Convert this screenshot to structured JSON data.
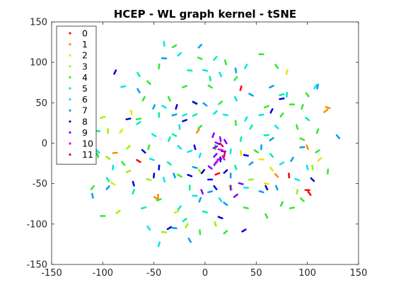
{
  "chart_data": {
    "type": "scatter",
    "title": "HCEP - WL graph kernel - tSNE",
    "xlabel": "",
    "ylabel": "",
    "xlim": [
      -150,
      150
    ],
    "ylim": [
      -150,
      150
    ],
    "xticks": [
      "-150",
      "-100",
      "-50",
      "0",
      "50",
      "100",
      "150"
    ],
    "yticks": [
      "150",
      "100",
      "50",
      "0",
      "-50",
      "-100",
      "-150"
    ],
    "xtick_values": [
      -150,
      -100,
      -50,
      0,
      50,
      100,
      150
    ],
    "ytick_values": [
      150,
      100,
      50,
      0,
      -50,
      -100,
      -150
    ],
    "grid": false,
    "legend_position": "top-left",
    "series": [
      {
        "name": "0",
        "color": "#ff0000",
        "points": [
          [
            100,
            -58
          ],
          [
            102,
            -62
          ],
          [
            35,
            68
          ],
          [
            12,
            -38
          ],
          [
            -65,
            -22
          ],
          [
            82,
            -40
          ]
        ]
      },
      {
        "name": "1",
        "color": "#ff8c00",
        "points": [
          [
            -48,
            -68
          ],
          [
            -46,
            -66
          ],
          [
            118,
            40
          ],
          [
            120,
            44
          ],
          [
            100,
            -5
          ],
          [
            -7,
            15
          ],
          [
            -88,
            -12
          ],
          [
            70,
            -40
          ]
        ]
      },
      {
        "name": "2",
        "color": "#e6e600",
        "points": [
          [
            -72,
            38
          ],
          [
            -82,
            15
          ],
          [
            55,
            -20
          ],
          [
            65,
            -32
          ],
          [
            80,
            88
          ],
          [
            -28,
            -85
          ],
          [
            -90,
            -50
          ],
          [
            35,
            -12
          ],
          [
            112,
            -20
          ],
          [
            60,
            -50
          ]
        ]
      },
      {
        "name": "3",
        "color": "#a0f000",
        "points": [
          [
            -115,
            40
          ],
          [
            -100,
            32
          ],
          [
            -95,
            -18
          ],
          [
            -95,
            15
          ],
          [
            -85,
            -85
          ],
          [
            -55,
            -45
          ],
          [
            10,
            -100
          ],
          [
            -18,
            -102
          ],
          [
            45,
            -45
          ],
          [
            25,
            -55
          ],
          [
            90,
            -60
          ],
          [
            -75,
            -35
          ],
          [
            -120,
            -15
          ],
          [
            105,
            -30
          ],
          [
            -75,
            -5
          ],
          [
            -40,
            -110
          ],
          [
            -5,
            -35
          ]
        ]
      },
      {
        "name": "4",
        "color": "#30e830",
        "points": [
          [
            -120,
            40
          ],
          [
            -112,
            -5
          ],
          [
            -105,
            -15
          ],
          [
            -110,
            -55
          ],
          [
            -100,
            -90
          ],
          [
            -80,
            -25
          ],
          [
            -55,
            -5
          ],
          [
            -45,
            -70
          ],
          [
            -25,
            -40
          ],
          [
            -5,
            -110
          ],
          [
            20,
            -110
          ],
          [
            40,
            -80
          ],
          [
            60,
            -90
          ],
          [
            75,
            -75
          ],
          [
            85,
            -80
          ],
          [
            95,
            -70
          ],
          [
            120,
            -35
          ],
          [
            110,
            -10
          ],
          [
            95,
            5
          ],
          [
            90,
            20
          ],
          [
            75,
            35
          ],
          [
            85,
            48
          ],
          [
            100,
            60
          ],
          [
            110,
            15
          ],
          [
            60,
            45
          ],
          [
            50,
            -10
          ],
          [
            30,
            25
          ],
          [
            15,
            50
          ],
          [
            -10,
            50
          ],
          [
            -35,
            55
          ],
          [
            -60,
            55
          ],
          [
            -65,
            30
          ],
          [
            -55,
            75
          ],
          [
            -45,
            95
          ],
          [
            -30,
            120
          ],
          [
            -5,
            105
          ],
          [
            20,
            100
          ],
          [
            30,
            80
          ],
          [
            55,
            110
          ],
          [
            70,
            95
          ],
          [
            95,
            45
          ],
          [
            -20,
            70
          ],
          [
            5,
            70
          ],
          [
            10,
            -5
          ],
          [
            -5,
            20
          ]
        ]
      },
      {
        "name": "5",
        "color": "#00f0a0",
        "points": [
          [
            -105,
            15
          ],
          [
            -95,
            -45
          ],
          [
            -70,
            -60
          ],
          [
            -60,
            -80
          ],
          [
            -35,
            -25
          ],
          [
            -15,
            -55
          ],
          [
            -20,
            -95
          ],
          [
            0,
            -85
          ],
          [
            30,
            -30
          ],
          [
            45,
            20
          ],
          [
            60,
            10
          ],
          [
            65,
            -15
          ],
          [
            35,
            5
          ],
          [
            -10,
            35
          ],
          [
            -30,
            10
          ],
          [
            5,
            80
          ],
          [
            10,
            105
          ],
          [
            -15,
            90
          ],
          [
            -65,
            85
          ],
          [
            -35,
            5
          ],
          [
            75,
            60
          ],
          [
            100,
            30
          ],
          [
            -45,
            35
          ]
        ]
      },
      {
        "name": "6",
        "color": "#00e6e6",
        "points": [
          [
            -105,
            -10
          ],
          [
            -90,
            -30
          ],
          [
            -65,
            25
          ],
          [
            -52,
            -20
          ],
          [
            -40,
            -45
          ],
          [
            -25,
            -80
          ],
          [
            -10,
            -65
          ],
          [
            -55,
            -105
          ],
          [
            -45,
            -125
          ],
          [
            -20,
            35
          ],
          [
            -40,
            45
          ],
          [
            -25,
            20
          ],
          [
            10,
            38
          ],
          [
            20,
            35
          ],
          [
            30,
            55
          ],
          [
            40,
            30
          ],
          [
            55,
            35
          ],
          [
            70,
            20
          ],
          [
            80,
            60
          ],
          [
            75,
            -25
          ],
          [
            90,
            -45
          ],
          [
            100,
            -30
          ],
          [
            108,
            70
          ],
          [
            40,
            -55
          ],
          [
            15,
            -70
          ],
          [
            -5,
            -15
          ],
          [
            -15,
            -10
          ],
          [
            -50,
            10
          ],
          [
            -40,
            123
          ],
          [
            -25,
            110
          ],
          [
            0,
            90
          ],
          [
            15,
            85
          ],
          [
            40,
            95
          ],
          [
            -80,
            70
          ],
          [
            -25,
            -5
          ],
          [
            25,
            -10
          ]
        ]
      },
      {
        "name": "7",
        "color": "#00a0f0",
        "points": [
          [
            -110,
            -65
          ],
          [
            -95,
            -55
          ],
          [
            -30,
            -105
          ],
          [
            -15,
            -120
          ],
          [
            -5,
            -70
          ],
          [
            5,
            -60
          ],
          [
            20,
            -75
          ],
          [
            25,
            -40
          ],
          [
            45,
            -25
          ],
          [
            55,
            -60
          ],
          [
            70,
            -55
          ],
          [
            85,
            -20
          ],
          [
            95,
            -5
          ],
          [
            130,
            8
          ],
          [
            110,
            70
          ],
          [
            65,
            70
          ],
          [
            45,
            60
          ],
          [
            30,
            90
          ],
          [
            -5,
            120
          ],
          [
            -40,
            105
          ],
          [
            -65,
            65
          ],
          [
            -50,
            45
          ],
          [
            -30,
            35
          ],
          [
            0,
            48
          ],
          [
            55,
            -5
          ],
          [
            65,
            5
          ],
          [
            -10,
            -30
          ],
          [
            -30,
            -40
          ]
        ]
      },
      {
        "name": "8",
        "color": "#0000e0",
        "points": [
          [
            -88,
            88
          ],
          [
            -75,
            30
          ],
          [
            -60,
            -10
          ],
          [
            -45,
            -30
          ],
          [
            -35,
            -105
          ],
          [
            -15,
            -40
          ],
          [
            -10,
            -5
          ],
          [
            -2,
            -35
          ],
          [
            5,
            -45
          ],
          [
            10,
            -55
          ],
          [
            -28,
            45
          ],
          [
            -20,
            28
          ],
          [
            -10,
            50
          ],
          [
            15,
            -20
          ],
          [
            20,
            -35
          ],
          [
            40,
            -15
          ],
          [
            60,
            -55
          ],
          [
            65,
            40
          ],
          [
            75,
            55
          ],
          [
            105,
            -45
          ],
          [
            -50,
            -40
          ],
          [
            38,
            -108
          ],
          [
            15,
            -92
          ],
          [
            -70,
            -50
          ]
        ]
      },
      {
        "name": "9",
        "color": "#8000ff",
        "points": [
          [
            10,
            -5
          ],
          [
            12,
            0
          ],
          [
            15,
            5
          ],
          [
            10,
            -15
          ],
          [
            18,
            -10
          ],
          [
            20,
            2
          ],
          [
            8,
            10
          ],
          [
            14,
            -20
          ],
          [
            5,
            -30
          ],
          [
            25,
            -55
          ],
          [
            30,
            -65
          ],
          [
            35,
            -50
          ],
          [
            -3,
            -60
          ],
          [
            10,
            -25
          ]
        ]
      },
      {
        "name": "10",
        "color": "#e000e0",
        "points": [
          [
            15,
            -8
          ],
          [
            18,
            -18
          ],
          [
            12,
            -22
          ]
        ]
      },
      {
        "name": "11",
        "color": "#e00040",
        "points": [
          [
            16,
            -2
          ],
          [
            19,
            -14
          ]
        ]
      }
    ]
  }
}
